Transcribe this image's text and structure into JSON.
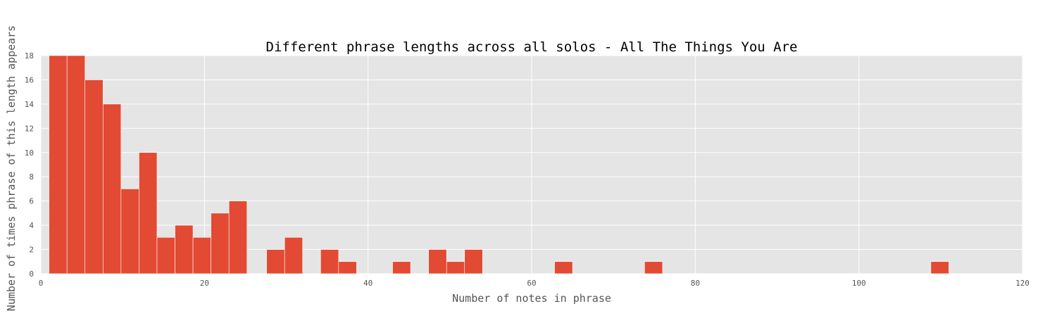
{
  "chart_data": {
    "type": "bar",
    "subtype": "histogram",
    "title": "Different phrase lengths across all solos - All The Things You Are",
    "xlabel": "Number of notes in phrase",
    "ylabel": "Number of times phrase of this length appears",
    "xlim": [
      0,
      120
    ],
    "ylim": [
      0,
      18
    ],
    "xticks": [
      0,
      20,
      40,
      60,
      80,
      100,
      120
    ],
    "yticks": [
      0,
      2,
      4,
      6,
      8,
      10,
      12,
      14,
      16,
      18
    ],
    "grid": true,
    "bar_color": "#E24A33",
    "plot_background": "#E5E5E5",
    "bins": [
      {
        "x0": 1.0,
        "x1": 3.2,
        "value": 18
      },
      {
        "x0": 3.2,
        "x1": 5.4,
        "value": 18
      },
      {
        "x0": 5.4,
        "x1": 7.6,
        "value": 16
      },
      {
        "x0": 7.6,
        "x1": 9.8,
        "value": 14
      },
      {
        "x0": 9.8,
        "x1": 12.0,
        "value": 7
      },
      {
        "x0": 12.0,
        "x1": 14.2,
        "value": 10
      },
      {
        "x0": 14.2,
        "x1": 16.4,
        "value": 3
      },
      {
        "x0": 16.4,
        "x1": 18.6,
        "value": 4
      },
      {
        "x0": 18.6,
        "x1": 20.8,
        "value": 3
      },
      {
        "x0": 20.8,
        "x1": 23.0,
        "value": 5
      },
      {
        "x0": 23.0,
        "x1": 25.2,
        "value": 6
      },
      {
        "x0": 27.6,
        "x1": 29.8,
        "value": 2
      },
      {
        "x0": 29.8,
        "x1": 32.0,
        "value": 3
      },
      {
        "x0": 34.2,
        "x1": 36.4,
        "value": 2
      },
      {
        "x0": 36.4,
        "x1": 38.6,
        "value": 1
      },
      {
        "x0": 43.0,
        "x1": 45.2,
        "value": 1
      },
      {
        "x0": 47.4,
        "x1": 49.6,
        "value": 2
      },
      {
        "x0": 49.6,
        "x1": 51.8,
        "value": 1
      },
      {
        "x0": 51.8,
        "x1": 54.0,
        "value": 2
      },
      {
        "x0": 62.8,
        "x1": 65.0,
        "value": 1
      },
      {
        "x0": 73.8,
        "x1": 76.0,
        "value": 1
      },
      {
        "x0": 108.8,
        "x1": 111.0,
        "value": 1
      }
    ]
  }
}
